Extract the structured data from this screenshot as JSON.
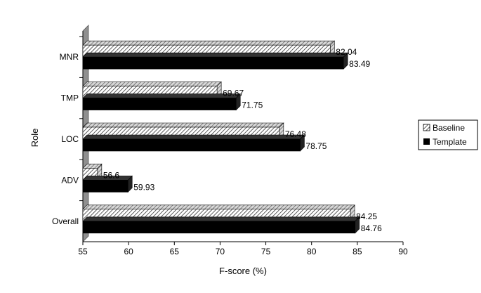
{
  "chart_data": {
    "type": "bar",
    "orientation": "horizontal",
    "style": "3d",
    "categories": [
      "MNR",
      "TMP",
      "LOC",
      "ADV",
      "Overall"
    ],
    "series": [
      {
        "name": "Baseline",
        "values": [
          82.04,
          69.67,
          76.48,
          56.6,
          84.25
        ],
        "color": "#8a8a8a",
        "pattern": "diagonal-hatch"
      },
      {
        "name": "Template",
        "values": [
          83.49,
          71.75,
          78.75,
          59.93,
          84.76
        ],
        "color": "#000000",
        "pattern": "solid"
      }
    ],
    "data_labels": {
      "Baseline": [
        "82.04",
        "69.67",
        "76.48",
        "56.6",
        "84.25"
      ],
      "Template": [
        "83.49",
        "71.75",
        "78.75",
        "59.93",
        "84.76"
      ]
    },
    "xlabel": "F-score (%)",
    "ylabel": "Role",
    "xlim": [
      55,
      90
    ],
    "x_ticks": [
      "55",
      "60",
      "65",
      "70",
      "75",
      "80",
      "85",
      "90"
    ],
    "grid": false,
    "legend_position": "right",
    "wall_color": "#8f8f8f"
  }
}
